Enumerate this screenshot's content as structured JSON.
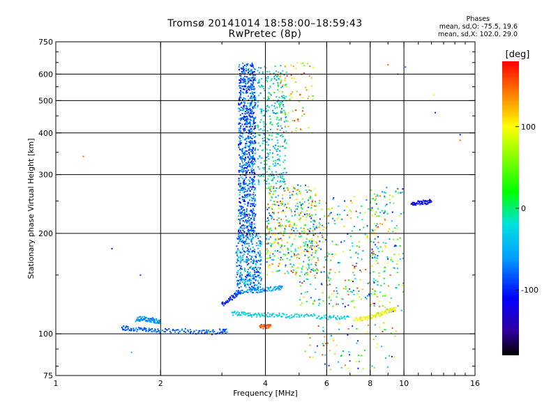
{
  "chart_data": {
    "type": "scatter",
    "title": "Tromsø 20141014 18:58:00–18:59:43",
    "subtitle": "RwPretec (8p)",
    "xlabel": "Frequency [MHz]",
    "ylabel": "Stationary phase Virtual Height [km]",
    "x_scale": "log",
    "y_scale": "log",
    "xlim": [
      1,
      16
    ],
    "ylim": [
      75,
      750
    ],
    "x_ticks": [
      1,
      2,
      4,
      6,
      8,
      10,
      16
    ],
    "y_ticks": [
      75,
      100,
      200,
      300,
      400,
      500,
      600,
      750
    ],
    "x_grid": [
      2,
      4,
      6,
      8,
      10
    ],
    "y_grid": [
      100,
      200,
      300,
      400,
      500,
      600
    ],
    "grid": true,
    "stats": {
      "heading": "Phases",
      "line1": "mean, sd,O: -75.5, 19.6",
      "line2": "mean, sd,X: 102.0, 29.0"
    },
    "colorbar": {
      "label": "[deg]",
      "range": [
        -180,
        180
      ],
      "ticks": [
        100,
        0,
        -100
      ],
      "colors": [
        "#ff0000",
        "#ff8000",
        "#ffff00",
        "#00ff00",
        "#00e0e0",
        "#00a0ff",
        "#0000ff",
        "#3000a0",
        "#000000"
      ]
    },
    "traces": [
      {
        "name": "",
        "x": [
          1.55,
          1.6,
          1.7,
          1.8,
          1.9,
          2.0,
          2.2,
          2.4,
          2.6,
          2.8,
          3.0,
          3.1
        ],
        "y": [
          104,
          104,
          103,
          103,
          102,
          102,
          102,
          102,
          101,
          101,
          102,
          102
        ],
        "phase": -80
      },
      {
        "name": "",
        "x": [
          1.7,
          1.75,
          1.8,
          1.85,
          1.9,
          1.95,
          2.0
        ],
        "y": [
          110,
          111,
          111,
          110,
          110,
          109,
          108
        ],
        "phase": -60
      },
      {
        "name": "",
        "x": [
          3.2,
          3.4,
          3.6,
          3.8,
          4.0,
          4.3,
          4.6,
          5.0,
          5.5,
          6.0,
          6.5,
          7.0
        ],
        "y": [
          115,
          115,
          114,
          114,
          114,
          114,
          113,
          113,
          113,
          112,
          112,
          112
        ],
        "phase": -30
      },
      {
        "name": "",
        "x": [
          3.3,
          3.5,
          3.7,
          3.9,
          4.1,
          4.3,
          4.5
        ],
        "y": [
          133,
          134,
          135,
          135,
          136,
          137,
          138
        ],
        "phase": -60
      },
      {
        "name": "",
        "x": [
          3.0,
          3.1,
          3.2,
          3.3,
          3.4
        ],
        "y": [
          122,
          125,
          128,
          131,
          134
        ],
        "phase": -100
      },
      {
        "name": "",
        "x": [
          7.2,
          7.6,
          8.0,
          8.4,
          8.8,
          9.2,
          9.5
        ],
        "y": [
          110,
          111,
          112,
          114,
          116,
          118,
          119
        ],
        "phase": 100
      },
      {
        "name": "",
        "x": [
          3.85,
          3.95,
          4.05,
          4.15
        ],
        "y": [
          105,
          105,
          105,
          105
        ],
        "phase": 150
      },
      {
        "name": "",
        "x": [
          10.5,
          10.8,
          11.2,
          11.6,
          12.0
        ],
        "y": [
          245,
          246,
          247,
          248,
          252
        ],
        "phase": -110
      }
    ],
    "clouds": [
      {
        "x": [
          3.35,
          3.75
        ],
        "y": [
          200,
          650
        ],
        "phase": [
          -120,
          -40
        ],
        "n": 900
      },
      {
        "x": [
          3.3,
          3.9
        ],
        "y": [
          135,
          200
        ],
        "phase": [
          -110,
          -20
        ],
        "n": 350
      },
      {
        "x": [
          3.8,
          4.6
        ],
        "y": [
          280,
          640
        ],
        "phase": [
          -80,
          20
        ],
        "n": 320
      },
      {
        "x": [
          4.0,
          5.6
        ],
        "y": [
          150,
          280
        ],
        "phase": [
          -100,
          170
        ],
        "n": 420
      },
      {
        "x": [
          5.0,
          8.5
        ],
        "y": [
          120,
          260
        ],
        "phase": [
          -110,
          170
        ],
        "n": 320
      },
      {
        "x": [
          8.0,
          10.0
        ],
        "y": [
          115,
          280
        ],
        "phase": [
          -120,
          150
        ],
        "n": 160
      },
      {
        "x": [
          4.3,
          5.5
        ],
        "y": [
          400,
          650
        ],
        "phase": [
          20,
          170
        ],
        "n": 80
      },
      {
        "x": [
          5.2,
          9.5
        ],
        "y": [
          78,
          108
        ],
        "phase": [
          -110,
          170
        ],
        "n": 80
      }
    ],
    "outliers": [
      {
        "x": 1.2,
        "y": 340,
        "phase": 150
      },
      {
        "x": 1.45,
        "y": 180,
        "phase": -120
      },
      {
        "x": 1.75,
        "y": 150,
        "phase": -90
      },
      {
        "x": 1.65,
        "y": 88,
        "phase": -40
      },
      {
        "x": 14.5,
        "y": 395,
        "phase": -110
      },
      {
        "x": 14.5,
        "y": 380,
        "phase": 150
      },
      {
        "x": 12.2,
        "y": 520,
        "phase": 110
      },
      {
        "x": 12.3,
        "y": 460,
        "phase": -100
      },
      {
        "x": 10.1,
        "y": 630,
        "phase": -80
      },
      {
        "x": 9.6,
        "y": 600,
        "phase": 160
      },
      {
        "x": 9.0,
        "y": 640,
        "phase": 150
      }
    ]
  }
}
